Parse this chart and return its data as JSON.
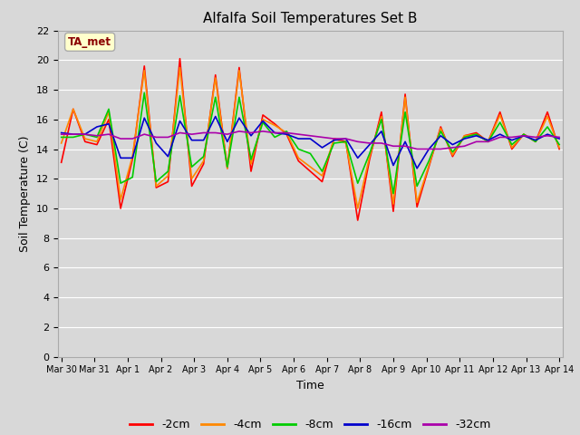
{
  "title": "Alfalfa Soil Temperatures Set B",
  "xlabel": "Time",
  "ylabel": "Soil Temperature (C)",
  "ylim": [
    0,
    22
  ],
  "yticks": [
    0,
    2,
    4,
    6,
    8,
    10,
    12,
    14,
    16,
    18,
    20,
    22
  ],
  "background_color": "#d8d8d8",
  "plot_bg_color": "#d8d8d8",
  "annotation_text": "TA_met",
  "annotation_color": "#8B0000",
  "annotation_bg": "#ffffcc",
  "legend_labels": [
    "-2cm",
    "-4cm",
    "-8cm",
    "-16cm",
    "-32cm"
  ],
  "colors": {
    "-2cm": "#ff0000",
    "-4cm": "#ff8800",
    "-8cm": "#00cc00",
    "-16cm": "#0000cc",
    "-32cm": "#aa00aa"
  },
  "line_width": 1.2,
  "x_labels": [
    "Mar 30",
    "Mar 31",
    "Apr 1",
    "Apr 2",
    "Apr 3",
    "Apr 4",
    "Apr 5",
    "Apr 6",
    "Apr 7",
    "Apr 8",
    "Apr 9",
    "Apr 10",
    "Apr 11",
    "Apr 12",
    "Apr 13",
    "Apr 14"
  ],
  "series": {
    "-2cm": [
      13.1,
      16.7,
      14.5,
      14.3,
      16.0,
      10.0,
      13.3,
      19.6,
      11.4,
      11.8,
      20.1,
      11.5,
      13.0,
      19.0,
      12.7,
      19.5,
      12.5,
      16.3,
      15.7,
      15.0,
      13.2,
      12.5,
      11.8,
      14.7,
      14.5,
      9.2,
      13.3,
      16.5,
      9.8,
      17.7,
      10.1,
      12.8,
      15.5,
      13.5,
      14.9,
      15.1,
      14.5,
      16.5,
      14.0,
      15.0,
      14.5,
      16.5,
      14.0
    ],
    "-4cm": [
      14.4,
      16.7,
      14.7,
      14.5,
      16.5,
      10.6,
      13.5,
      19.3,
      11.5,
      12.2,
      19.5,
      12.0,
      13.2,
      18.8,
      12.7,
      19.3,
      13.0,
      16.0,
      15.6,
      15.1,
      13.4,
      12.8,
      12.2,
      14.7,
      14.4,
      10.0,
      13.5,
      16.2,
      10.3,
      17.5,
      10.4,
      12.9,
      15.4,
      13.6,
      14.9,
      15.0,
      14.5,
      16.3,
      14.1,
      15.0,
      14.5,
      16.2,
      14.1
    ],
    "-8cm": [
      14.8,
      14.8,
      15.0,
      14.8,
      16.7,
      11.7,
      12.1,
      17.8,
      11.8,
      12.5,
      17.6,
      12.8,
      13.5,
      17.5,
      12.8,
      17.5,
      13.3,
      15.8,
      14.8,
      15.2,
      14.0,
      13.7,
      12.5,
      14.4,
      14.5,
      11.7,
      13.7,
      16.0,
      11.0,
      16.5,
      11.5,
      13.2,
      15.2,
      13.8,
      14.8,
      15.0,
      14.5,
      15.8,
      14.3,
      15.0,
      14.5,
      15.5,
      14.3
    ],
    "-16cm": [
      15.1,
      15.0,
      15.0,
      15.5,
      15.7,
      13.4,
      13.4,
      16.1,
      14.4,
      13.5,
      15.9,
      14.6,
      14.6,
      16.2,
      14.5,
      16.1,
      14.9,
      15.9,
      15.1,
      15.0,
      14.7,
      14.7,
      14.1,
      14.6,
      14.7,
      13.4,
      14.3,
      15.2,
      12.9,
      14.5,
      12.7,
      14.0,
      14.9,
      14.3,
      14.7,
      14.9,
      14.6,
      15.0,
      14.6,
      14.9,
      14.6,
      15.0,
      14.7
    ],
    "-32cm": [
      15.0,
      15.0,
      15.0,
      14.9,
      15.0,
      14.7,
      14.7,
      15.0,
      14.8,
      14.8,
      15.1,
      15.0,
      15.1,
      15.1,
      15.0,
      15.2,
      15.1,
      15.2,
      15.1,
      15.1,
      15.0,
      14.9,
      14.8,
      14.7,
      14.7,
      14.5,
      14.4,
      14.4,
      14.2,
      14.2,
      14.0,
      14.0,
      14.0,
      14.1,
      14.2,
      14.5,
      14.5,
      14.8,
      14.8,
      14.9,
      14.8,
      14.9,
      14.8
    ]
  }
}
